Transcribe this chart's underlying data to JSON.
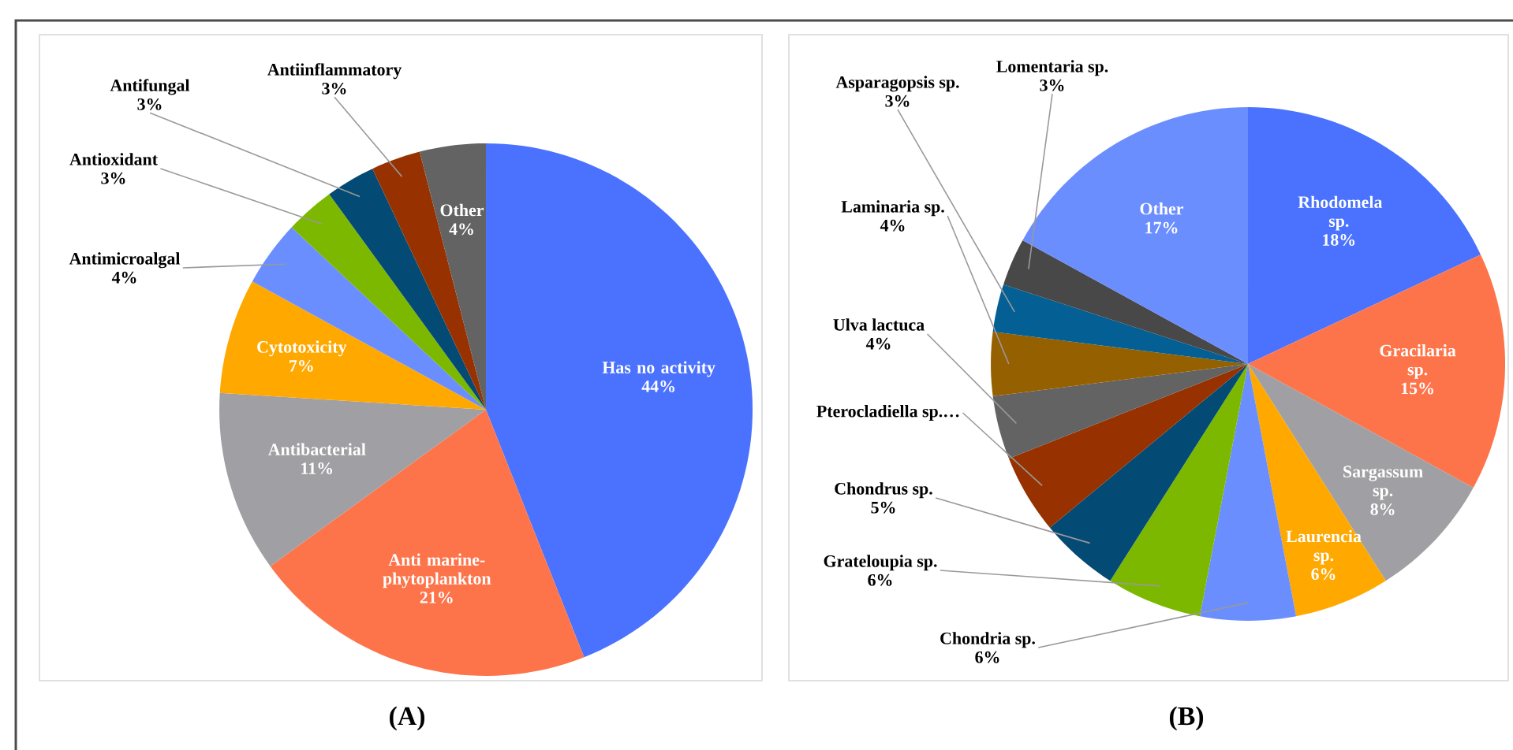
{
  "chart_data": [
    {
      "type": "pie",
      "title": "(A)",
      "categories": [
        "Has no activity",
        "Anti marine-phytoplankton",
        "Antibacterial",
        "Cytotoxicity",
        "Antimicroalgal",
        "Antioxidant",
        "Antifungal",
        "Antiinflammatory",
        "Other"
      ],
      "values": [
        44,
        21,
        11,
        7,
        4,
        3,
        3,
        3,
        4
      ],
      "value_labels": [
        "44%",
        "21%",
        "11%",
        "7%",
        "4%",
        "3%",
        "3%",
        "3%",
        "4%"
      ],
      "colors": [
        "#4a72fe",
        "#fe744a",
        "#a0a0a4",
        "#ffa800",
        "#6b8eff",
        "#7cb800",
        "#034a74",
        "#973200",
        "#636363"
      ]
    },
    {
      "type": "pie",
      "title": "(B)",
      "categories": [
        "Rhodomela sp.",
        "Gracilaria sp.",
        "Sargassum sp.",
        "Laurencia sp.",
        "Chondria sp.",
        "Grateloupia sp.",
        "Chondrus sp.",
        "Pterocladiella sp.…",
        "Ulva lactuca",
        "Laminaria sp.",
        "Asparagopsis sp.",
        "Lomentaria sp.",
        "Other"
      ],
      "values": [
        18,
        15,
        8,
        6,
        6,
        6,
        5,
        5,
        4,
        4,
        3,
        3,
        17
      ],
      "value_labels": [
        "18%",
        "15%",
        "8%",
        "6%",
        "6%",
        "6%",
        "5%",
        null,
        "4%",
        "4%",
        "3%",
        "3%",
        "17%"
      ],
      "colors": [
        "#4a72fe",
        "#fe744a",
        "#a0a0a4",
        "#ffa800",
        "#6b8eff",
        "#7cb800",
        "#034a74",
        "#973200",
        "#636363",
        "#956000",
        "#035f94",
        "#484848",
        "#6b8eff"
      ]
    }
  ]
}
